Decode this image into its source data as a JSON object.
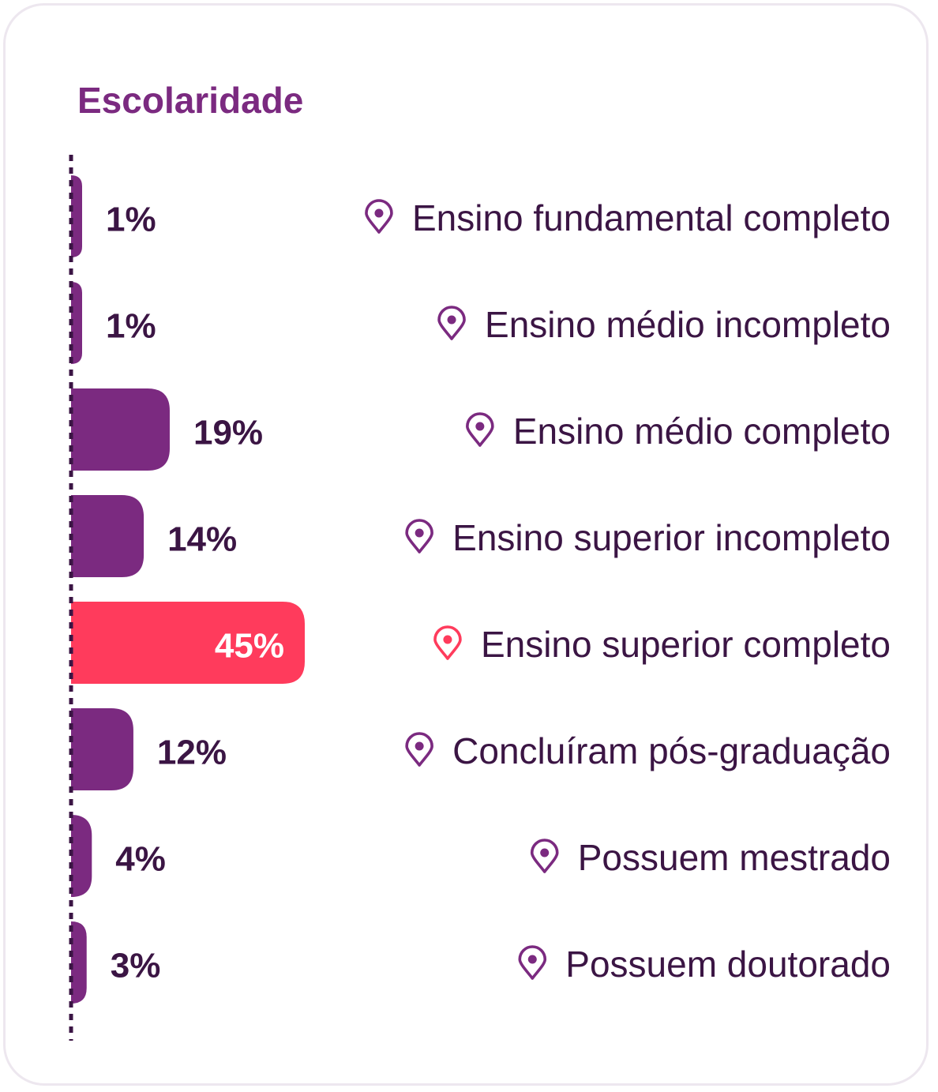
{
  "chart_data": {
    "type": "bar",
    "orientation": "horizontal",
    "title": "Escolaridade",
    "unit": "%",
    "categories": [
      "Ensino fundamental completo",
      "Ensino médio incompleto",
      "Ensino médio completo",
      "Ensino superior incompleto",
      "Ensino superior completo",
      "Concluíram pós-graduação",
      "Possuem mestrado",
      "Possuem doutorado"
    ],
    "values": [
      1,
      1,
      19,
      14,
      45,
      12,
      4,
      3
    ],
    "value_labels": [
      "1%",
      "1%",
      "19%",
      "14%",
      "45%",
      "12%",
      "4%",
      "3%"
    ],
    "highlight_index": 4,
    "xlim": [
      0,
      45
    ],
    "grid": false,
    "legend": "none",
    "category_icon": "location-pin-icon"
  },
  "colors": {
    "title": "#7b2a80",
    "bar": "#7b2a80",
    "highlight_bar": "#ff3b5c",
    "text": "#3b1544",
    "axis_line": "#3b1544",
    "card_border": "#ede7ef"
  }
}
